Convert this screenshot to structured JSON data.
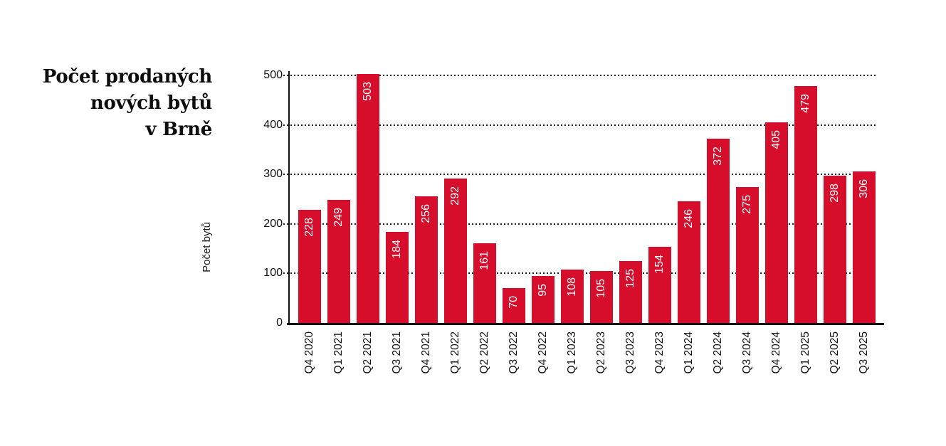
{
  "title": {
    "lines": [
      "Počet prodaných",
      "nových bytů",
      "v Brně"
    ]
  },
  "chart_data": {
    "type": "bar",
    "title": "Počet prodaných nových bytů v Brně",
    "xlabel": "",
    "ylabel": "Počet bytů",
    "categories": [
      "Q4 2020",
      "Q1 2021",
      "Q2 2021",
      "Q3 2021",
      "Q4 2021",
      "Q1 2022",
      "Q2 2022",
      "Q3 2022",
      "Q4 2022",
      "Q1 2023",
      "Q2 2023",
      "Q3 2023",
      "Q4 2023",
      "Q1 2024",
      "Q2 2024",
      "Q3 2024",
      "Q4 2024",
      "Q1 2025",
      "Q2 2025",
      "Q3 2025"
    ],
    "values": [
      228,
      249,
      503,
      184,
      256,
      292,
      161,
      70,
      95,
      108,
      105,
      125,
      154,
      246,
      372,
      275,
      405,
      479,
      298,
      306
    ],
    "ylim": [
      0,
      500
    ],
    "yticks": [
      0,
      100,
      200,
      300,
      400,
      500
    ],
    "grid": "horizontal-dotted",
    "legend": "none",
    "bar_color": "#d60e2b",
    "value_label_color": "#ffffff",
    "axis_color": "#111111",
    "value_label_rotation": -90,
    "x_tick_rotation": -90
  }
}
